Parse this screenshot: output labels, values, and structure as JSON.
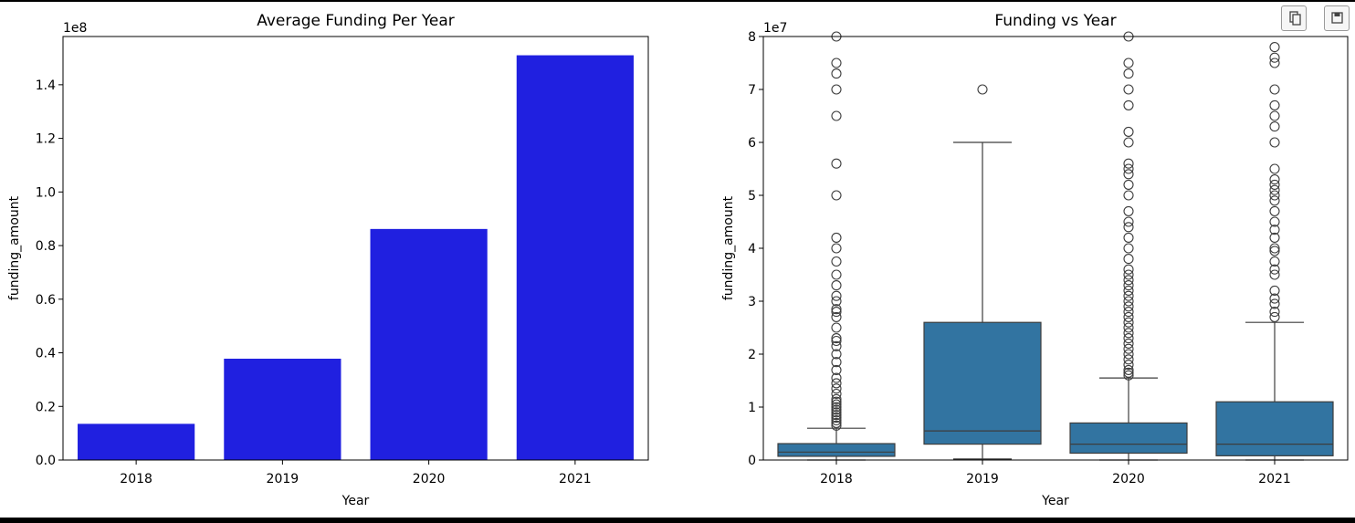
{
  "toolbar": {
    "copy_icon": "copy-icon",
    "save_icon": "save-icon"
  },
  "chart_data": [
    {
      "type": "bar",
      "title": "Average Funding Per Year",
      "xlabel": "Year",
      "ylabel": "funding_amount",
      "offset_text": "1e8",
      "categories": [
        "2018",
        "2019",
        "2020",
        "2021"
      ],
      "values": [
        13500000,
        37800000,
        86200000,
        151000000
      ],
      "ylim": [
        0,
        158000000
      ],
      "yticks": [
        0,
        20000000,
        40000000,
        60000000,
        80000000,
        100000000,
        120000000,
        140000000
      ],
      "ytick_labels": [
        "0.0",
        "0.2",
        "0.4",
        "0.6",
        "0.8",
        "1.0",
        "1.2",
        "1.4"
      ],
      "color": "#2020e0",
      "grid": false
    },
    {
      "type": "box",
      "title": "Funding vs  Year",
      "xlabel": "Year",
      "ylabel": "funding_amount",
      "offset_text": "1e7",
      "categories": [
        "2018",
        "2019",
        "2020",
        "2021"
      ],
      "ylim": [
        0,
        80000000
      ],
      "yticks": [
        0,
        10000000,
        20000000,
        30000000,
        40000000,
        50000000,
        60000000,
        70000000,
        80000000
      ],
      "ytick_labels": [
        "0",
        "1",
        "2",
        "3",
        "4",
        "5",
        "6",
        "7",
        "8"
      ],
      "color": "#3274a1",
      "grid": false,
      "boxes": [
        {
          "name": "2018",
          "whisker_low": 0,
          "q1": 700000,
          "median": 1500000,
          "q3": 3100000,
          "whisker_high": 6000000,
          "outliers": [
            6500000,
            7000000,
            7500000,
            8000000,
            8500000,
            9000000,
            9500000,
            10000000,
            10500000,
            11000000,
            11500000,
            12500000,
            13500000,
            14500000,
            15500000,
            17000000,
            18500000,
            20000000,
            21500000,
            22500000,
            23000000,
            25000000,
            27000000,
            28000000,
            28500000,
            30000000,
            31000000,
            33000000,
            35000000,
            37500000,
            40000000,
            42000000,
            50000000,
            56000000,
            65000000,
            70000000,
            73000000,
            75000000,
            80000000
          ]
        },
        {
          "name": "2019",
          "whisker_low": 200000,
          "q1": 3000000,
          "median": 5500000,
          "q3": 26000000,
          "whisker_high": 60000000,
          "outliers": [
            70000000
          ]
        },
        {
          "name": "2020",
          "whisker_low": 0,
          "q1": 1300000,
          "median": 3000000,
          "q3": 7000000,
          "whisker_high": 15500000,
          "outliers": [
            16000000,
            16500000,
            17000000,
            18000000,
            19000000,
            20000000,
            21000000,
            22000000,
            23000000,
            24000000,
            25000000,
            26000000,
            27000000,
            28000000,
            29000000,
            30000000,
            31000000,
            32000000,
            33000000,
            34000000,
            35000000,
            36000000,
            38000000,
            40000000,
            42000000,
            44000000,
            45000000,
            47000000,
            50000000,
            52000000,
            54000000,
            55000000,
            56000000,
            60000000,
            62000000,
            67000000,
            70000000,
            73000000,
            75000000,
            80000000
          ]
        },
        {
          "name": "2021",
          "whisker_low": 0,
          "q1": 800000,
          "median": 3000000,
          "q3": 11000000,
          "whisker_high": 26000000,
          "outliers": [
            27000000,
            28000000,
            29500000,
            30500000,
            32000000,
            35000000,
            36000000,
            37500000,
            39500000,
            40000000,
            42000000,
            43500000,
            45000000,
            47000000,
            49000000,
            50000000,
            51000000,
            52000000,
            53000000,
            55000000,
            60000000,
            63000000,
            65000000,
            67000000,
            70000000,
            75000000,
            76000000,
            78000000
          ]
        }
      ]
    }
  ]
}
